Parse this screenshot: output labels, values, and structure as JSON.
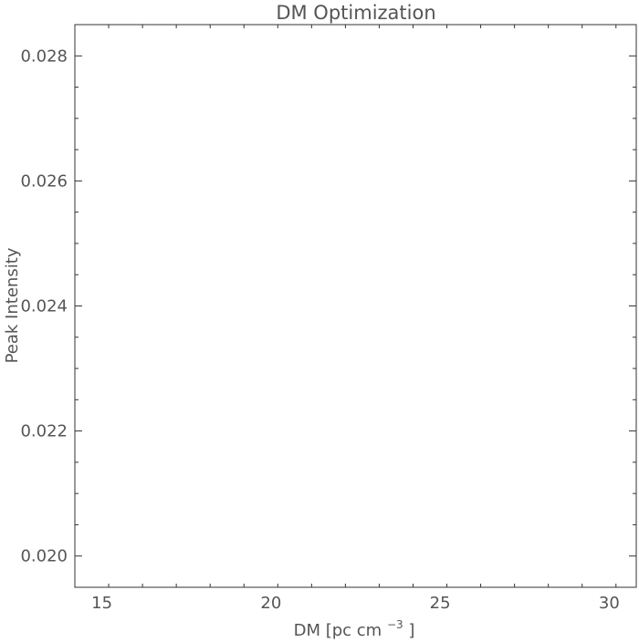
{
  "chart_data": {
    "type": "line",
    "title": "DM Optimization",
    "xlabel_main": "DM [pc cm",
    "xlabel_sup": "−3",
    "xlabel_end": "]",
    "ylabel": "Peak Intensity",
    "xlim": [
      14.2,
      30.8
    ],
    "ylim": [
      0.0195,
      0.0285
    ],
    "x_major_ticks": [
      15,
      20,
      25,
      30
    ],
    "x_tick_labels": [
      "15",
      "20",
      "25",
      "30"
    ],
    "y_major_ticks": [
      0.02,
      0.022,
      0.024,
      0.026,
      0.028
    ],
    "y_tick_labels": [
      "0.020",
      "0.022",
      "0.024",
      "0.026",
      "0.028"
    ],
    "series": [],
    "grid": false,
    "frame": true
  }
}
